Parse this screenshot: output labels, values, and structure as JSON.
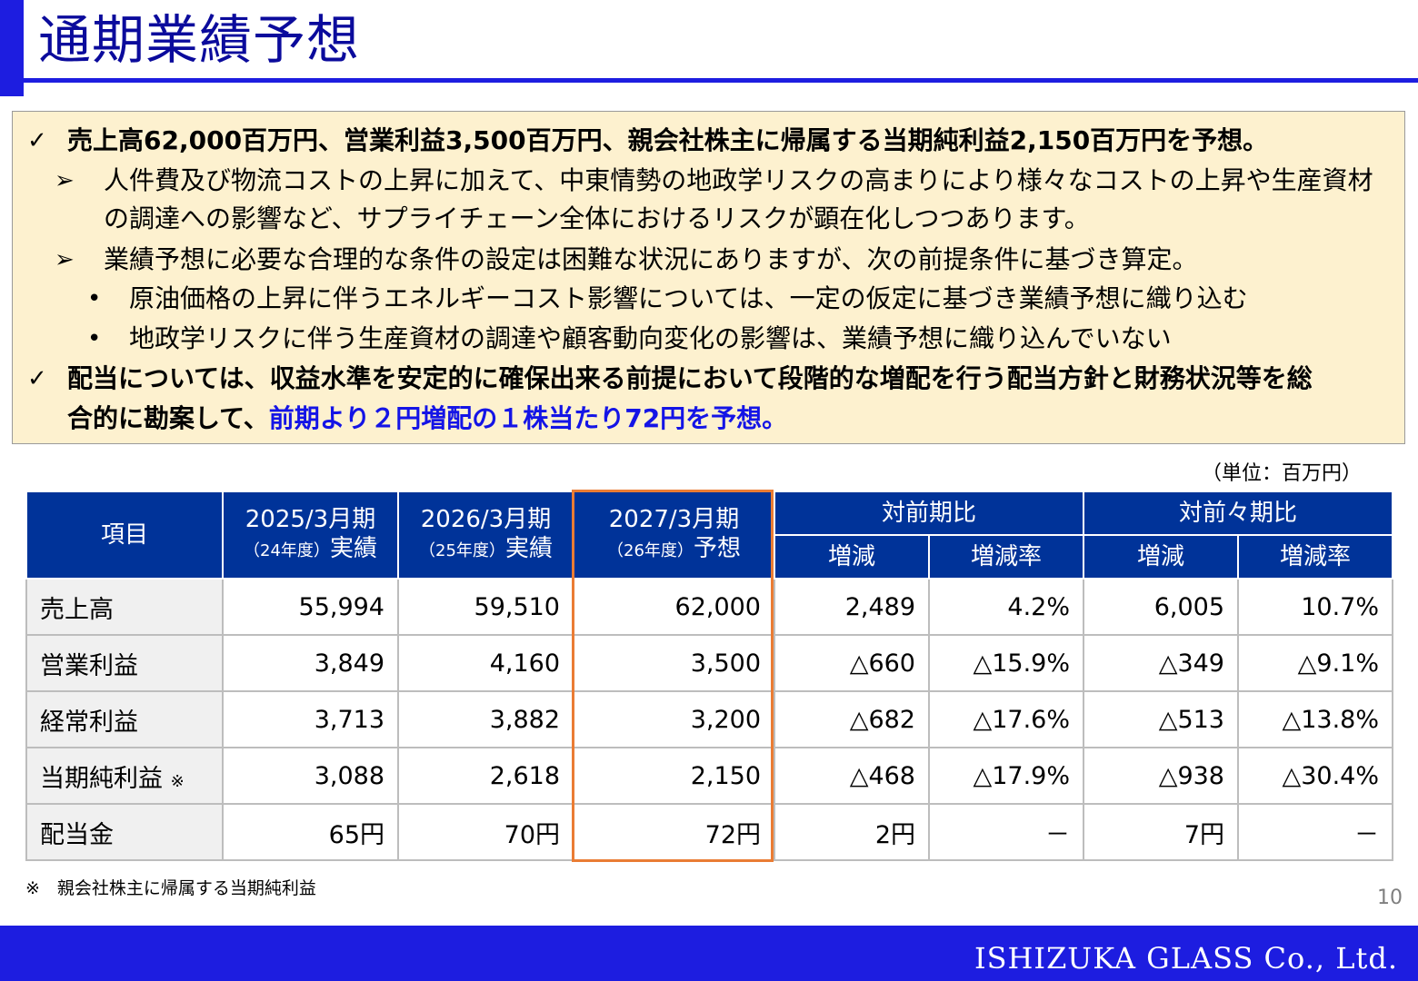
{
  "title": "通期業績予想",
  "bullets": {
    "l1": "売上高62,000百万円、営業利益3,500百万円、親会社株主に帰属する当期純利益2,150百万円を予想。",
    "l2a": "人件費及び物流コストの上昇に加えて、中東情勢の地政学リスクの高まりにより様々なコストの上昇や生産資材",
    "l2b": "の調達への影響など、サプライチェーン全体におけるリスクが顕在化しつつあります。",
    "l3": "業績予想に必要な合理的な条件の設定は困難な状況にありますが、次の前提条件に基づき算定。",
    "l4": "原油価格の上昇に伴うエネルギーコスト影響については、一定の仮定に基づき業績予想に織り込む",
    "l5": "地政学リスクに伴う生産資材の調達や顧客動向変化の影響は、業績予想に織り込んでいない",
    "l6": "配当については、収益水準を安定的に確保出来る前提において段階的な増配を行う配当方針と財務状況等を総",
    "l7a": "合的に勘案して、",
    "l7b": "前期より２円増配の１株当たり72円を予想。"
  },
  "markers": {
    "check": "✓",
    "arrow": "➢",
    "dot": "•"
  },
  "unit": "（単位：百万円）",
  "table": {
    "h_item": "項目",
    "h_p1": "2025/3月期",
    "h_p1_sub": "（24年度）",
    "h_p1_type": "実績",
    "h_p2": "2026/3月期",
    "h_p2_sub": "（25年度）",
    "h_p2_type": "実績",
    "h_p3": "2027/3月期",
    "h_p3_sub": "（26年度）",
    "h_p3_type": "予想",
    "h_yoy": "対前期比",
    "h_yoy2": "対前々期比",
    "h_change": "増減",
    "h_rate": "増減率",
    "rows": [
      {
        "label": "売上高",
        "note": "",
        "v1": "55,994",
        "v2": "59,510",
        "v3": "62,000",
        "c1": "2,489",
        "r1": "4.2%",
        "c2": "6,005",
        "r2": "10.7%"
      },
      {
        "label": "営業利益",
        "note": "",
        "v1": "3,849",
        "v2": "4,160",
        "v3": "3,500",
        "c1": "△660",
        "r1": "△15.9%",
        "c2": "△349",
        "r2": "△9.1%"
      },
      {
        "label": "経常利益",
        "note": "",
        "v1": "3,713",
        "v2": "3,882",
        "v3": "3,200",
        "c1": "△682",
        "r1": "△17.6%",
        "c2": "△513",
        "r2": "△13.8%"
      },
      {
        "label": "当期純利益",
        "note": "※",
        "v1": "3,088",
        "v2": "2,618",
        "v3": "2,150",
        "c1": "△468",
        "r1": "△17.9%",
        "c2": "△938",
        "r2": "△30.4%"
      },
      {
        "label": "配当金",
        "note": "",
        "v1": "65円",
        "v2": "70円",
        "v3": "72円",
        "c1": "2円",
        "r1": "－",
        "c2": "7円",
        "r2": "－"
      }
    ]
  },
  "footnote": "※　親会社株主に帰属する当期純利益",
  "page_number": "10",
  "company": "ISHIZUKA GLASS Co., Ltd."
}
